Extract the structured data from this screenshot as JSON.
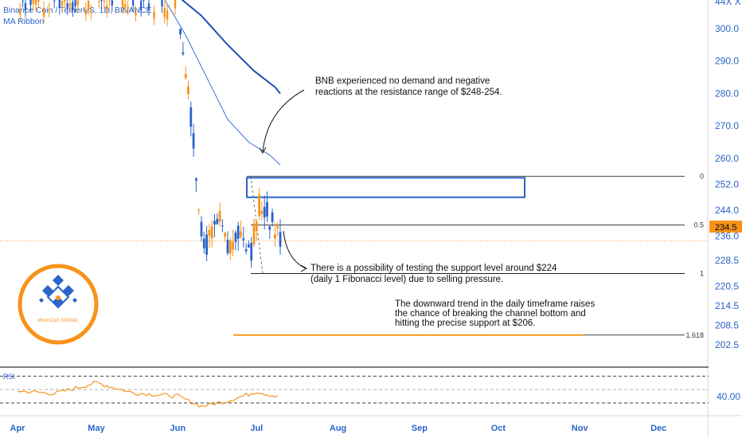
{
  "header": {
    "symbol": "Binance Coin / TetherUS, 1D, BINANCE",
    "indicator": "MA Ribbon",
    "corner_label": "44X X"
  },
  "price_tag": "234.5",
  "rsi": {
    "label": "RSI",
    "level_label": "40.00",
    "levels": [
      70,
      50,
      30
    ]
  },
  "logo": {
    "caption": "MoonCoin SIGNAL",
    "color": "#f7931a",
    "mark_color": "#2a63c9"
  },
  "annotations": [
    "BNB experienced no demand and negative",
    "reactions at the resistance range of $248-254.",
    "There is a possibility of testing the support level around $224",
    "(daily 1 Fibonacci level) due to selling pressure.",
    "The downward trend in the daily timeframe raises",
    "the chance of breaking the channel bottom and",
    "hitting the precise support at $206."
  ],
  "colors": {
    "up": "#2a63c9",
    "down": "#f7931a",
    "ma_fast": "#3a6fd8",
    "ma_slow": "#1d4fb8",
    "rsi_line": "#f7931a"
  },
  "chart_data": {
    "type": "line",
    "title": "Binance Coin / TetherUS, 1D, BINANCE",
    "x_ticks": [
      "Apr",
      "May",
      "Jun",
      "Jul",
      "Aug",
      "Sep",
      "Oct",
      "Nov",
      "Dec"
    ],
    "y_ticks": [
      300.0,
      290.0,
      280.0,
      270.0,
      260.0,
      252.0,
      244.0,
      236.0,
      228.5,
      220.5,
      214.5,
      208.5,
      202.5
    ],
    "ylim": [
      197,
      312
    ],
    "last_price": 234.5,
    "fib_levels": [
      {
        "label": "0",
        "value": 254.5
      },
      {
        "label": "0.5",
        "value": 239.5
      },
      {
        "label": "1",
        "value": 224.5
      },
      {
        "label": "1.618",
        "value": 205.5
      }
    ],
    "resistance_zone": [
      248,
      254
    ],
    "support_target": 206,
    "series": [
      {
        "name": "Price",
        "x": [
          "Jun 2",
          "Jun 5",
          "Jun 8",
          "Jun 11",
          "Jun 14",
          "Jun 17",
          "Jun 20",
          "Jun 23",
          "Jun 26",
          "Jun 29",
          "Jul 2",
          "Jul 5",
          "Jul 8",
          "Jul 11"
        ],
        "values": [
          300,
          283,
          255,
          232,
          236,
          240,
          231,
          238,
          236,
          232,
          246,
          243,
          238,
          234.5
        ]
      },
      {
        "name": "MA fast",
        "x": [
          "May 27",
          "Jun 4",
          "Jun 12",
          "Jun 20",
          "Jun 28",
          "Jul 6",
          "Jul 10"
        ],
        "values": [
          309,
          298,
          285,
          272,
          265,
          261,
          258
        ]
      },
      {
        "name": "MA slow",
        "x": [
          "May 20",
          "Jun 1",
          "Jun 10",
          "Jun 20",
          "Jun 30",
          "Jul 8",
          "Jul 10"
        ],
        "values": [
          312,
          310,
          304,
          295,
          287,
          282,
          280
        ]
      },
      {
        "name": "RSI",
        "x": [
          "Apr 1",
          "Apr 15",
          "May 1",
          "May 15",
          "Jun 1",
          "Jun 10",
          "Jun 20",
          "Jul 1",
          "Jul 10"
        ],
        "values": [
          48,
          44,
          60,
          45,
          40,
          25,
          33,
          47,
          38
        ]
      }
    ]
  }
}
